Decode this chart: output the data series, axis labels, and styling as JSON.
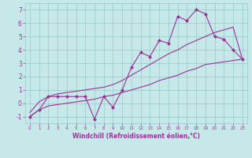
{
  "xlabel": "Windchill (Refroidissement éolien,°C)",
  "bg_color": "#c6e8e8",
  "grid_color": "#96c8c8",
  "line_color": "#993399",
  "x_data": [
    0,
    1,
    2,
    3,
    4,
    5,
    6,
    7,
    8,
    9,
    10,
    11,
    12,
    13,
    14,
    15,
    16,
    17,
    18,
    19,
    20,
    21,
    22,
    23
  ],
  "y_jagged": [
    -1.0,
    -0.5,
    0.5,
    0.5,
    0.5,
    0.5,
    0.5,
    -1.2,
    0.5,
    -0.3,
    1.0,
    2.7,
    3.8,
    3.5,
    4.7,
    4.5,
    6.5,
    6.2,
    7.0,
    6.7,
    5.0,
    4.8,
    4.0,
    3.3
  ],
  "y_upper": [
    -0.7,
    0.1,
    0.5,
    0.7,
    0.8,
    0.9,
    1.0,
    1.1,
    1.2,
    1.4,
    1.7,
    2.1,
    2.5,
    2.9,
    3.3,
    3.7,
    4.0,
    4.4,
    4.7,
    5.0,
    5.3,
    5.5,
    5.7,
    3.3
  ],
  "y_lower": [
    -1.0,
    -0.5,
    -0.2,
    -0.1,
    0.0,
    0.1,
    0.2,
    0.3,
    0.5,
    0.6,
    0.8,
    1.0,
    1.2,
    1.4,
    1.7,
    1.9,
    2.1,
    2.4,
    2.6,
    2.9,
    3.0,
    3.1,
    3.2,
    3.3
  ],
  "ylim": [
    -1.5,
    7.5
  ],
  "yticks": [
    -1,
    0,
    1,
    2,
    3,
    4,
    5,
    6,
    7
  ],
  "xticks": [
    0,
    1,
    2,
    3,
    4,
    5,
    6,
    7,
    8,
    9,
    10,
    11,
    12,
    13,
    14,
    15,
    16,
    17,
    18,
    19,
    20,
    21,
    22,
    23
  ],
  "marker": "D",
  "marker_size": 2.0,
  "linewidth": 0.8,
  "tick_fontsize_x": 4.0,
  "tick_fontsize_y": 5.5,
  "xlabel_fontsize": 5.5
}
